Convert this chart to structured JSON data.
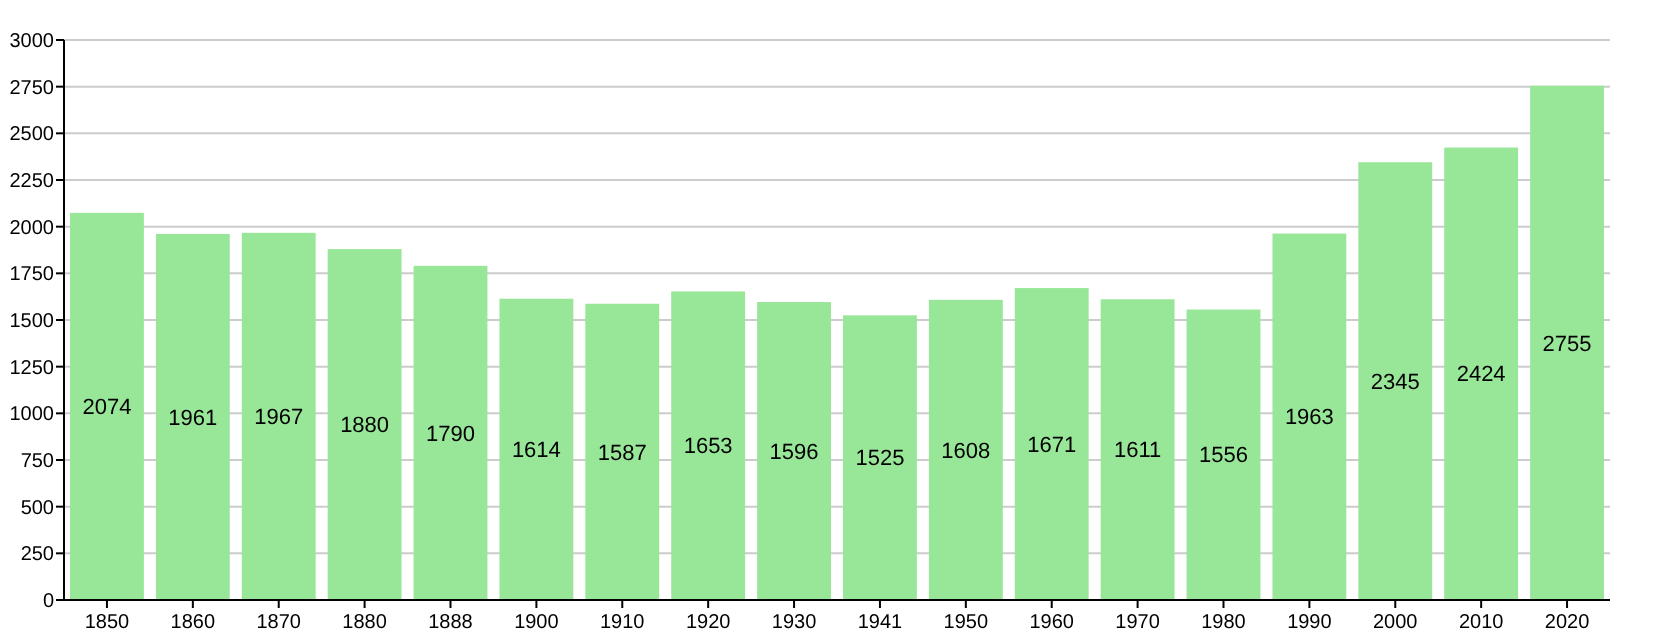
{
  "chart_data": {
    "type": "bar",
    "categories": [
      "1850",
      "1860",
      "1870",
      "1880",
      "1888",
      "1900",
      "1910",
      "1920",
      "1930",
      "1941",
      "1950",
      "1960",
      "1970",
      "1980",
      "1990",
      "2000",
      "2010",
      "2020"
    ],
    "values": [
      2074,
      1961,
      1967,
      1880,
      1790,
      1614,
      1587,
      1653,
      1596,
      1525,
      1608,
      1671,
      1611,
      1556,
      1963,
      2345,
      2424,
      2755
    ],
    "color": "#98e698",
    "ylim": [
      0,
      3000
    ],
    "yticks": [
      0,
      250,
      500,
      750,
      1000,
      1250,
      1500,
      1750,
      2000,
      2250,
      2500,
      2750,
      3000
    ],
    "grid": "y",
    "data_labels": true
  }
}
